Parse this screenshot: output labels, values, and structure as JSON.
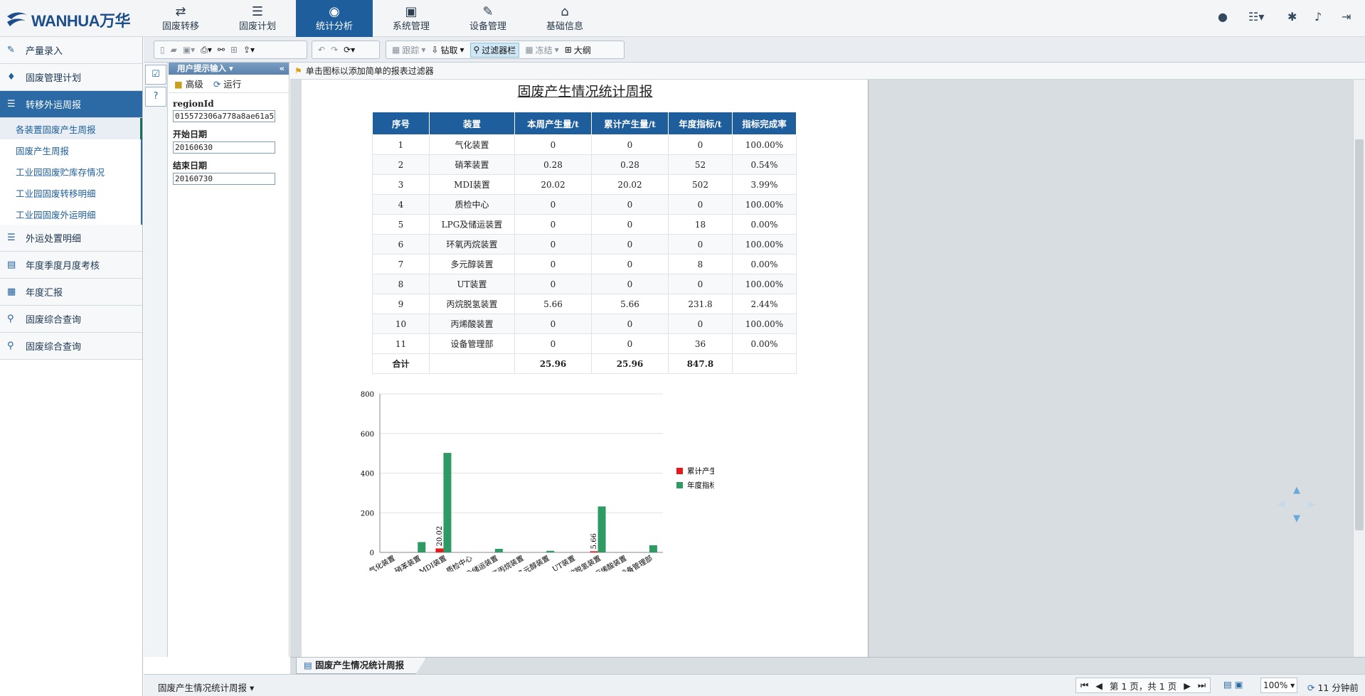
{
  "app": {
    "logo_text": "WANHUA万华"
  },
  "nav": [
    {
      "label": "固废转移",
      "icon": "transfer-icon",
      "glyph": "⇄"
    },
    {
      "label": "固废计划",
      "icon": "server-icon",
      "glyph": "☰"
    },
    {
      "label": "统计分析",
      "icon": "globe-icon",
      "glyph": "◉"
    },
    {
      "label": "系统管理",
      "icon": "inbox-icon",
      "glyph": "▣"
    },
    {
      "label": "设备管理",
      "icon": "wrench-icon",
      "glyph": "✎"
    },
    {
      "label": "基础信息",
      "icon": "home-icon",
      "glyph": "⌂"
    }
  ],
  "header_icons": [
    {
      "icon": "user-icon",
      "glyph": "●"
    },
    {
      "icon": "list-menu-icon",
      "glyph": "☷▾"
    },
    {
      "icon": "gear-icon",
      "glyph": "✱"
    },
    {
      "icon": "bell-icon",
      "glyph": "♪"
    },
    {
      "icon": "logout-icon",
      "glyph": "⇥"
    }
  ],
  "sidebar": {
    "items_top": [
      {
        "label": "产量录入",
        "glyph": "✎"
      },
      {
        "label": "固废管理计划",
        "glyph": "♦"
      },
      {
        "label": "转移外运周报",
        "glyph": "☰"
      }
    ],
    "sub": [
      "各装置固废产生周报",
      "固废产生周报",
      "工业园固废贮库存情况",
      "工业园固废转移明细",
      "工业园固废外运明细"
    ],
    "items_bottom": [
      {
        "label": "外运处置明细",
        "glyph": "☰"
      },
      {
        "label": "年度季度月度考核",
        "glyph": "▤"
      },
      {
        "label": "年度汇报",
        "glyph": "▦"
      },
      {
        "label": "固废综合查询",
        "glyph": "⚲"
      },
      {
        "label": "固废综合查询",
        "glyph": "⚲"
      }
    ]
  },
  "toolbar": {
    "trace": "跟踪",
    "drill": "钻取",
    "filterbar": "过滤器栏",
    "freeze": "冻结",
    "outline": "大纲"
  },
  "params": {
    "header": "用户提示输入",
    "advanced": "高级",
    "run": "运行",
    "fields": [
      {
        "label": "regionId",
        "value": "015572306a778a8ae61a5"
      },
      {
        "label": "开始日期",
        "value": "20160630"
      },
      {
        "label": "结束日期",
        "value": "20160730"
      }
    ]
  },
  "filter_hint": "单击图标以添加简单的报表过滤器",
  "report": {
    "title": "固废产生情况统计周报",
    "headers": [
      "序号",
      "装置",
      "本周产生量/t",
      "累计产生量/t",
      "年度指标/t",
      "指标完成率"
    ],
    "rows": [
      [
        "1",
        "气化装置",
        "0",
        "0",
        "0",
        "100.00%"
      ],
      [
        "2",
        "硝苯装置",
        "0.28",
        "0.28",
        "52",
        "0.54%"
      ],
      [
        "3",
        "MDI装置",
        "20.02",
        "20.02",
        "502",
        "3.99%"
      ],
      [
        "4",
        "质检中心",
        "0",
        "0",
        "0",
        "100.00%"
      ],
      [
        "5",
        "LPG及储运装置",
        "0",
        "0",
        "18",
        "0.00%"
      ],
      [
        "6",
        "环氧丙烷装置",
        "0",
        "0",
        "0",
        "100.00%"
      ],
      [
        "7",
        "多元醇装置",
        "0",
        "0",
        "8",
        "0.00%"
      ],
      [
        "8",
        "UT装置",
        "0",
        "0",
        "0",
        "100.00%"
      ],
      [
        "9",
        "丙烷脱氢装置",
        "5.66",
        "5.66",
        "231.8",
        "2.44%"
      ],
      [
        "10",
        "丙烯酸装置",
        "0",
        "0",
        "0",
        "100.00%"
      ],
      [
        "11",
        "设备管理部",
        "0",
        "0",
        "36",
        "0.00%"
      ]
    ],
    "total": [
      "合计",
      "",
      "25.96",
      "25.96",
      "847.8",
      ""
    ]
  },
  "chart_data": {
    "type": "bar",
    "categories": [
      "气化装置",
      "硝苯装置",
      "MDI装置",
      "质检中心",
      "LPG及储运装置",
      "环氧丙烷装置",
      "多元醇装置",
      "UT装置",
      "丙烷脱氢装置",
      "丙烯酸装置",
      "设备管理部"
    ],
    "series": [
      {
        "name": "累计产生量/t",
        "color": "#e8171c",
        "values": [
          0,
          0.28,
          20.02,
          0,
          0,
          0,
          0,
          0,
          5.66,
          0,
          0
        ]
      },
      {
        "name": "年度指标/t",
        "color": "#2e9a64",
        "values": [
          0,
          52,
          502,
          0,
          18,
          0,
          8,
          0,
          231.8,
          0,
          36
        ]
      }
    ],
    "data_labels": [
      {
        "series": 0,
        "index": 2,
        "text": "20.02"
      },
      {
        "series": 0,
        "index": 8,
        "text": "5.66"
      }
    ],
    "yticks": [
      "0",
      "200",
      "400",
      "600",
      "800"
    ],
    "ylim": [
      0,
      800
    ],
    "legend": "right",
    "grid": true
  },
  "bottom_tab": "固废产生情况统计周报",
  "status": {
    "report_name": "固废产生情况统计周报",
    "page_info": "第 1 页，共 1 页",
    "zoom": "100%",
    "elapsed": "11 分钟前"
  }
}
